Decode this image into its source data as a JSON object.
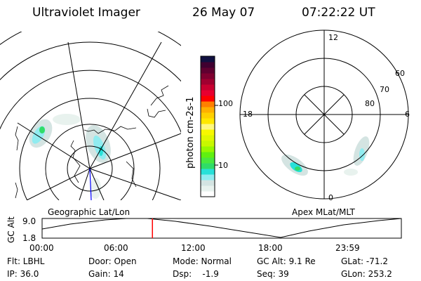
{
  "header": {
    "instrument": "Ultraviolet Imager",
    "date": "26 May 07",
    "time": "07:22:22 UT"
  },
  "colorbar": {
    "unit_label": "photon cm-2s-1",
    "ticks": [
      "10",
      "100"
    ],
    "colors": [
      "#ffffff",
      "#e8f2ee",
      "#d4e4e2",
      "#90ecf0",
      "#28e0d8",
      "#30dc68",
      "#48e840",
      "#60f010",
      "#98f800",
      "#c8f800",
      "#e0f800",
      "#f8f800",
      "#fff880",
      "#ffe800",
      "#ffd000",
      "#ffb000",
      "#ff8000",
      "#ff0000",
      "#e80030",
      "#c80030",
      "#a00030",
      "#800030",
      "#600030",
      "#400030",
      "#101040"
    ]
  },
  "left_map": {
    "label": "Geographic Lat/Lon"
  },
  "right_map": {
    "label": "Apex MLat/MLT",
    "mlt_labels": [
      "12",
      "18",
      "6",
      "0"
    ],
    "lat_labels": [
      "60",
      "70",
      "80"
    ]
  },
  "altitude_plot": {
    "ylabel": "GC Alt",
    "yticks": [
      "9.0",
      "1.8"
    ],
    "xticks": [
      "00:00",
      "06:00",
      "12:00",
      "18:00",
      "23:59"
    ],
    "current_time_hours": 7.37,
    "marker_color": "#ff0000"
  },
  "info": {
    "flt": "Flt: LBHL",
    "ip": "IP: 36.0",
    "door": "Door: Open",
    "gain": "Gain: 14",
    "mode": "Mode: Normal",
    "dsp": "Dsp:    -1.9",
    "gc_alt": "GC Alt: 9.1 Re",
    "seq": "Seq: 39",
    "glat": "GLat: -71.2",
    "glon": "GLon: 253.2"
  }
}
